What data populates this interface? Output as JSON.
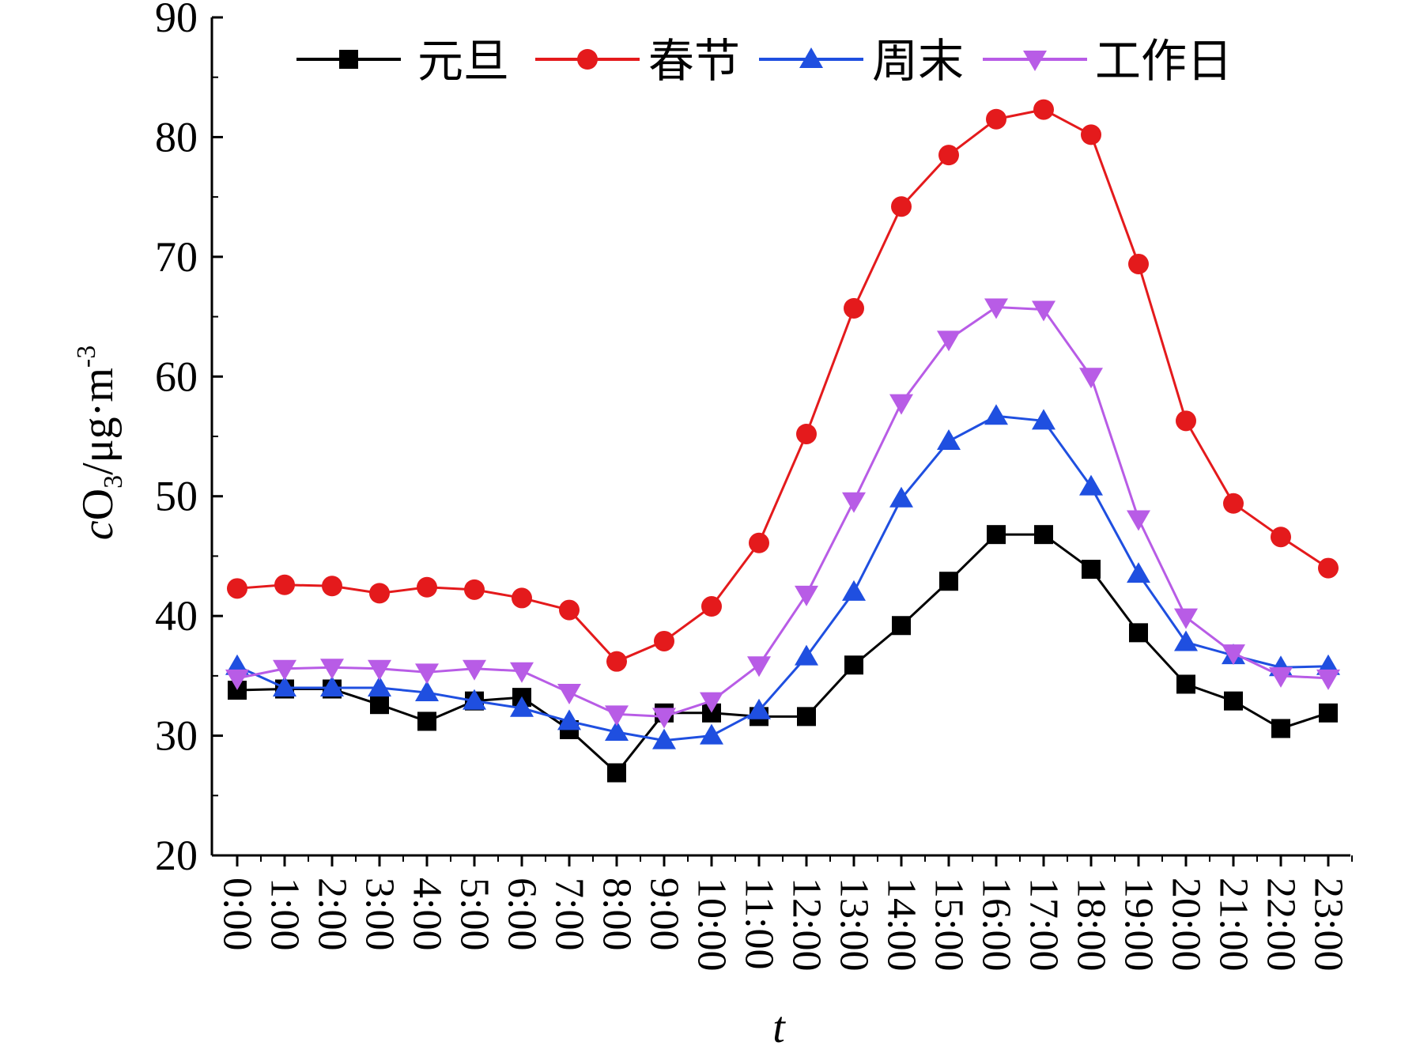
{
  "chart_data": {
    "type": "line",
    "xlabel": "t",
    "ylabel": {
      "c": "c",
      "O": "O",
      "sub": "3",
      "rest": "/μg·m",
      "sup": "-3"
    },
    "ylim": [
      20,
      90
    ],
    "yticks": [
      20,
      30,
      40,
      50,
      60,
      70,
      80,
      90
    ],
    "grid": false,
    "legend_position": "top",
    "categories": [
      "0:00",
      "1:00",
      "2:00",
      "3:00",
      "4:00",
      "5:00",
      "6:00",
      "7:00",
      "8:00",
      "9:00",
      "10:00",
      "11:00",
      "12:00",
      "13:00",
      "14:00",
      "15:00",
      "16:00",
      "17:00",
      "18:00",
      "19:00",
      "20:00",
      "21:00",
      "22:00",
      "23:00"
    ],
    "series": [
      {
        "name": "元旦",
        "color": "#000000",
        "marker": "square",
        "values": [
          33.8,
          33.9,
          33.9,
          32.6,
          31.2,
          32.9,
          33.2,
          30.5,
          26.9,
          31.9,
          31.9,
          31.6,
          31.6,
          35.9,
          39.2,
          42.9,
          46.8,
          46.8,
          43.9,
          38.6,
          34.3,
          32.9,
          30.6,
          31.9
        ]
      },
      {
        "name": "春节",
        "color": "#e41a1c",
        "marker": "circle",
        "values": [
          42.3,
          42.6,
          42.5,
          41.9,
          42.4,
          42.2,
          41.5,
          40.5,
          36.2,
          37.9,
          40.8,
          46.1,
          55.2,
          65.7,
          74.2,
          78.5,
          81.5,
          82.3,
          80.2,
          69.4,
          56.3,
          49.4,
          46.6,
          44.0
        ]
      },
      {
        "name": "周末",
        "color": "#1f4fe0",
        "marker": "triangle-up",
        "values": [
          35.8,
          34.0,
          34.0,
          34.0,
          33.6,
          32.9,
          32.3,
          31.2,
          30.3,
          29.6,
          30.0,
          32.1,
          36.6,
          42.0,
          49.8,
          54.6,
          56.7,
          56.3,
          50.8,
          43.5,
          37.8,
          36.7,
          35.7,
          35.8
        ]
      },
      {
        "name": "工作日",
        "color": "#b85ce6",
        "marker": "triangle-down",
        "values": [
          34.8,
          35.6,
          35.7,
          35.6,
          35.3,
          35.6,
          35.4,
          33.6,
          31.8,
          31.6,
          32.9,
          35.9,
          41.8,
          49.6,
          57.8,
          63.1,
          65.8,
          65.6,
          60.0,
          48.1,
          39.9,
          36.9,
          35.0,
          34.8
        ]
      }
    ]
  }
}
